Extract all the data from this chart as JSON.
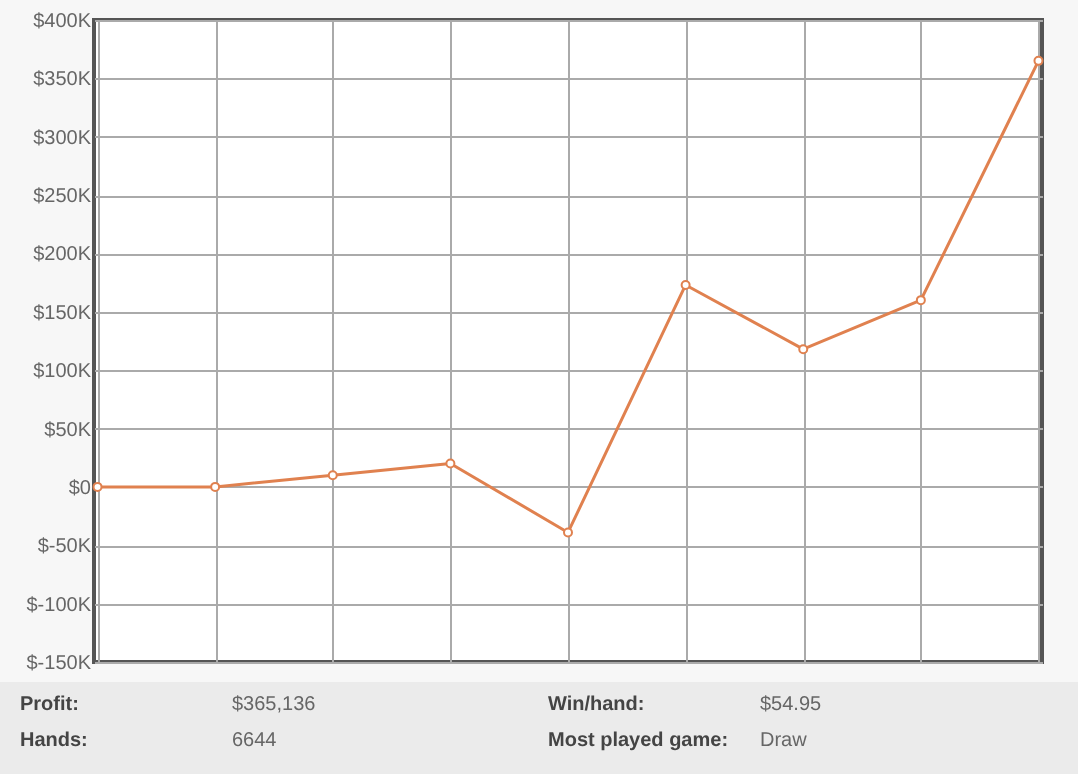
{
  "chart_data": {
    "type": "line",
    "categories": [
      null,
      null,
      null,
      null,
      null,
      null,
      null,
      null,
      null
    ],
    "series": [
      {
        "color": "#e0814f",
        "values": [
          0,
          0,
          10000,
          20000,
          -39000,
          173000,
          118000,
          160000,
          365000
        ]
      }
    ],
    "ylim": [
      -150000,
      400000
    ],
    "yticks": [
      {
        "value": -150000,
        "label": "$-150K"
      },
      {
        "value": -100000,
        "label": "$-100K"
      },
      {
        "value": -50000,
        "label": "$-50K"
      },
      {
        "value": 0,
        "label": "$0"
      },
      {
        "value": 50000,
        "label": "$50K"
      },
      {
        "value": 100000,
        "label": "$100K"
      },
      {
        "value": 150000,
        "label": "$150K"
      },
      {
        "value": 200000,
        "label": "$200K"
      },
      {
        "value": 250000,
        "label": "$250K"
      },
      {
        "value": 300000,
        "label": "$300K"
      },
      {
        "value": 350000,
        "label": "$350K"
      },
      {
        "value": 400000,
        "label": "$400K"
      }
    ],
    "grid": true,
    "marker": "circle",
    "line_style": "solid",
    "tick_labels": "y",
    "annotations": [
      "Profit:",
      "$365,136",
      "Hands:",
      "6644",
      "Win/hand:",
      "$54.95",
      "Most played game:",
      "Draw"
    ]
  }
}
